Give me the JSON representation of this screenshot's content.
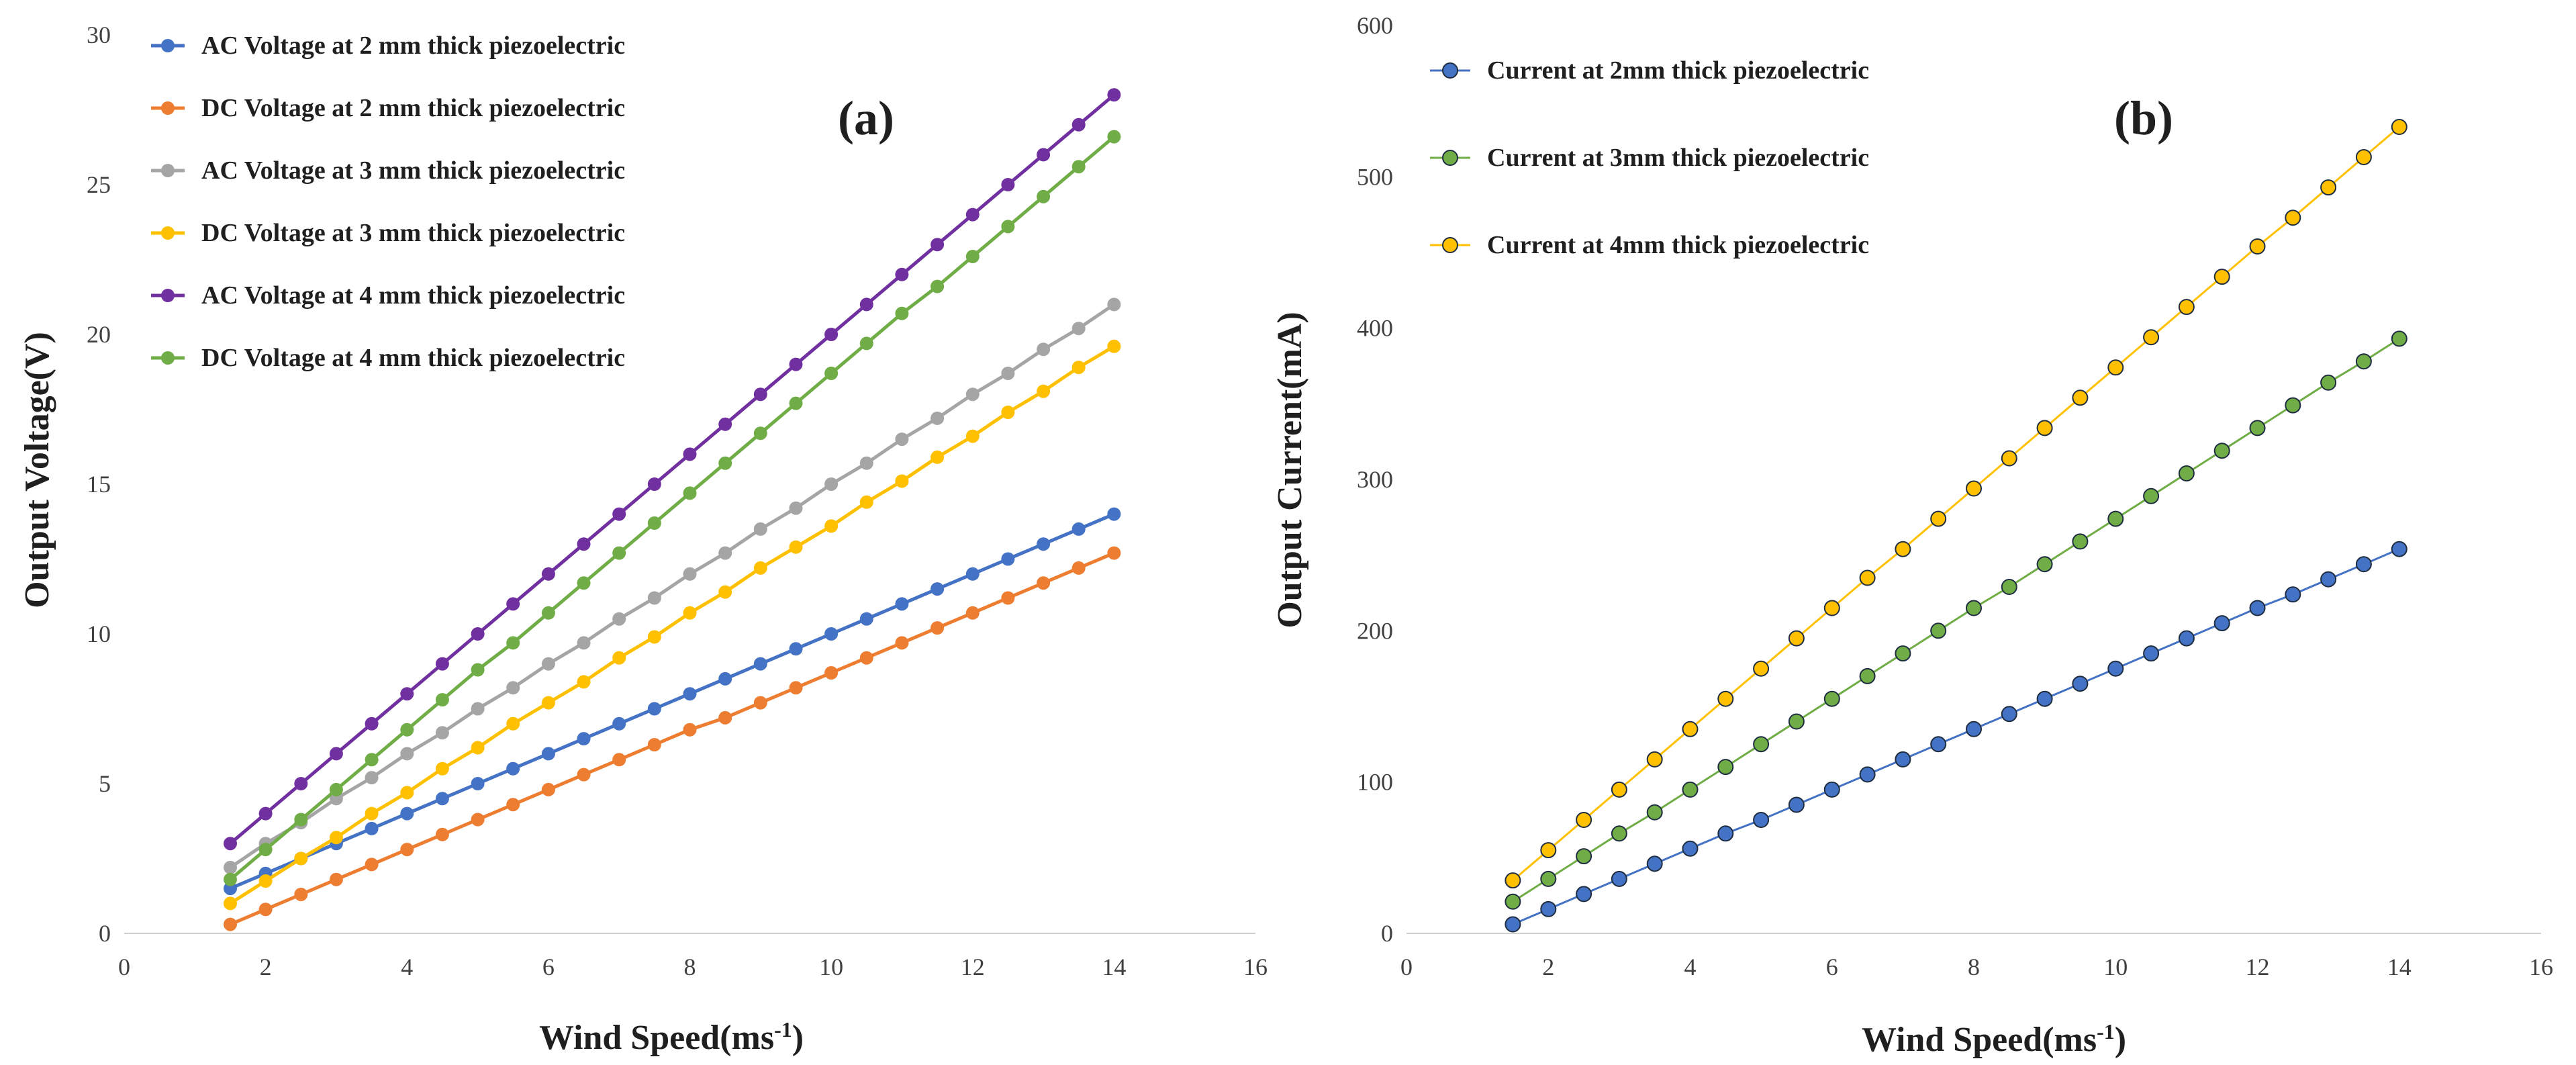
{
  "chart_data": [
    {
      "type": "line",
      "panel_label": "(a)",
      "xlabel": "Wind Speed(ms",
      "xlabel_sup": "-1",
      "xlabel_close": ")",
      "ylabel": "Output Voltage(V)",
      "xlim": [
        0,
        16
      ],
      "ylim": [
        0,
        30
      ],
      "xticks": [
        "0",
        "2",
        "4",
        "6",
        "8",
        "10",
        "12",
        "14",
        "16"
      ],
      "yticks": [
        "0",
        "5",
        "10",
        "15",
        "20",
        "25",
        "30"
      ],
      "grid": false,
      "legend_position": "top-left",
      "x": [
        1.5,
        2,
        2.5,
        3,
        3.5,
        4,
        4.5,
        5,
        5.5,
        6,
        6.5,
        7,
        7.5,
        8,
        8.5,
        9,
        9.5,
        10,
        10.5,
        11,
        11.5,
        12,
        12.5,
        13,
        13.5,
        14
      ],
      "series": [
        {
          "name": "AC Voltage at 2 mm thick piezoelectric",
          "color": "#4472C4",
          "values": [
            1.5,
            2,
            2.5,
            3,
            3.5,
            4,
            4.5,
            5,
            5.5,
            6,
            6.5,
            7,
            7.5,
            8,
            8.5,
            9,
            9.5,
            10,
            10.5,
            11,
            11.5,
            12,
            12.5,
            13,
            13.5,
            14
          ]
        },
        {
          "name": "DC Voltage at 2 mm thick piezoelectric",
          "color": "#ED7D31",
          "values": [
            0.3,
            0.8,
            1.3,
            1.8,
            2.3,
            2.8,
            3.3,
            3.8,
            4.3,
            4.8,
            5.3,
            5.8,
            6.3,
            6.8,
            7.2,
            7.7,
            8.2,
            8.7,
            9.2,
            9.7,
            10.2,
            10.7,
            11.2,
            11.7,
            12.2,
            12.7
          ]
        },
        {
          "name": " AC Voltage at 3 mm thick piezoelectric",
          "color": "#A5A5A5",
          "values": [
            2.2,
            3,
            3.7,
            4.5,
            5.2,
            6,
            6.7,
            7.5,
            8.2,
            9,
            9.7,
            10.5,
            11.2,
            12,
            12.7,
            13.5,
            14.2,
            15,
            15.7,
            16.5,
            17.2,
            18,
            18.7,
            19.5,
            20.2,
            21
          ]
        },
        {
          "name": "DC Voltage at 3 mm thick piezoelectric",
          "color": "#FFC000",
          "values": [
            1,
            1.75,
            2.5,
            3.2,
            4,
            4.7,
            5.5,
            6.2,
            7,
            7.7,
            8.4,
            9.2,
            9.9,
            10.7,
            11.4,
            12.2,
            12.9,
            13.6,
            14.4,
            15.1,
            15.9,
            16.6,
            17.4,
            18.1,
            18.9,
            19.6
          ]
        },
        {
          "name": "AC Voltage at 4 mm thick piezoelectric",
          "color": "#7030A0",
          "values": [
            3,
            4,
            5,
            6,
            7,
            8,
            9,
            10,
            11,
            12,
            13,
            14,
            15,
            16,
            17,
            18,
            19,
            20,
            21,
            22,
            23,
            24,
            25,
            26,
            27,
            28
          ]
        },
        {
          "name": "DC Voltage at 4 mm thick piezoelectric",
          "color": "#70AD47",
          "values": [
            1.8,
            2.8,
            3.8,
            4.8,
            5.8,
            6.8,
            7.8,
            8.8,
            9.7,
            10.7,
            11.7,
            12.7,
            13.7,
            14.7,
            15.7,
            16.7,
            17.7,
            18.7,
            19.7,
            20.7,
            21.6,
            22.6,
            23.6,
            24.6,
            25.6,
            26.6
          ]
        }
      ]
    },
    {
      "type": "line",
      "panel_label": "(b)",
      "xlabel": "Wind Speed(ms",
      "xlabel_sup": "-1",
      "xlabel_close": ")",
      "ylabel": "Output Current(mA)",
      "xlim": [
        0,
        16
      ],
      "ylim": [
        0,
        600
      ],
      "xticks": [
        "0",
        "2",
        "4",
        "6",
        "8",
        "10",
        "12",
        "14",
        "16"
      ],
      "yticks": [
        "0",
        "100",
        "200",
        "300",
        "400",
        "500",
        "600"
      ],
      "grid": false,
      "legend_position": "top-left",
      "x": [
        1.5,
        2,
        2.5,
        3,
        3.5,
        4,
        4.5,
        5,
        5.5,
        6,
        6.5,
        7,
        7.5,
        8,
        8.5,
        9,
        9.5,
        10,
        10.5,
        11,
        11.5,
        12,
        12.5,
        13,
        13.5,
        14
      ],
      "series": [
        {
          "name": "Current at 2mm thick piezoelectric",
          "color": "#4472C4",
          "values": [
            6,
            16,
            26,
            36,
            46,
            56,
            66,
            75,
            85,
            95,
            105,
            115,
            125,
            135,
            145,
            155,
            165,
            175,
            185,
            195,
            205,
            215,
            224,
            234,
            244,
            254
          ]
        },
        {
          "name": "Current at 3mm thick piezoelectric",
          "color": "#70AD47",
          "values": [
            21,
            36,
            51,
            66,
            80,
            95,
            110,
            125,
            140,
            155,
            170,
            185,
            200,
            215,
            229,
            244,
            259,
            274,
            289,
            304,
            319,
            334,
            349,
            364,
            378,
            393
          ]
        },
        {
          "name": "Current at 4mm thick piezoelectric",
          "color": "#FFC000",
          "values": [
            35,
            55,
            75,
            95,
            115,
            135,
            155,
            175,
            195,
            215,
            235,
            254,
            274,
            294,
            314,
            334,
            354,
            374,
            394,
            414,
            434,
            454,
            473,
            493,
            513,
            533
          ]
        }
      ]
    }
  ]
}
